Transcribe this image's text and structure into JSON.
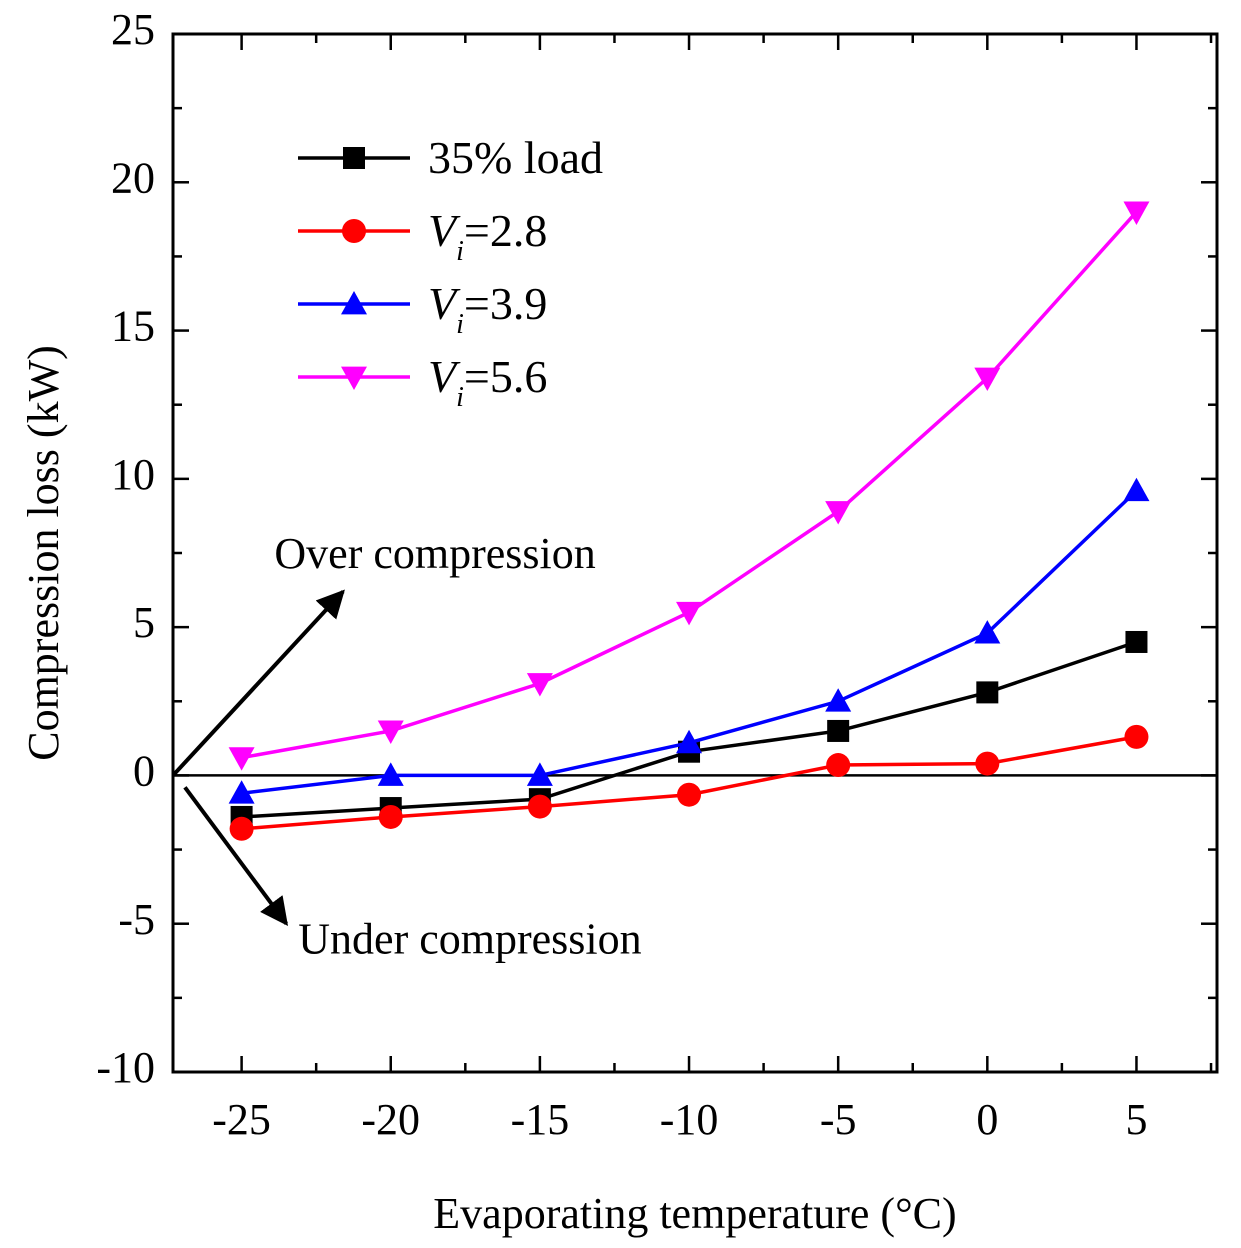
{
  "chart_data": {
    "type": "line",
    "xlabel": "Evaporating temperature (°C)",
    "ylabel": "Compression loss (kW)",
    "xlim": [
      -27.3,
      7.7
    ],
    "ylim": [
      -10,
      25
    ],
    "x_ticks": [
      -25,
      -20,
      -15,
      -10,
      -5,
      0,
      5
    ],
    "y_ticks": [
      -10,
      -5,
      0,
      5,
      10,
      15,
      20,
      25
    ],
    "x_tick_labels": [
      "-25",
      "-20",
      "-15",
      "-10",
      "-5",
      "0",
      "5"
    ],
    "y_tick_labels": [
      "-10",
      "-5",
      "0",
      "5",
      "10",
      "15",
      "20",
      "25"
    ],
    "grid": false,
    "legend_position": "top-left",
    "zero_line": true,
    "x": [
      -25,
      -20,
      -15,
      -10,
      -5,
      0,
      5
    ],
    "series": [
      {
        "name": "35% load",
        "name_main": "35% load",
        "name_sub": "",
        "name_tail": "",
        "color": "#000000",
        "marker": "square",
        "values": [
          -1.4,
          -1.1,
          -0.8,
          0.8,
          1.5,
          2.8,
          4.5
        ]
      },
      {
        "name": "Vi=2.8",
        "name_main": "V",
        "name_sub": "i",
        "name_tail": "=2.8",
        "color": "#ff0000",
        "marker": "circle",
        "values": [
          -1.8,
          -1.4,
          -1.05,
          -0.65,
          0.35,
          0.4,
          1.3
        ]
      },
      {
        "name": "Vi=3.9",
        "name_main": "V",
        "name_sub": "i",
        "name_tail": "=3.9",
        "color": "#0000ff",
        "marker": "triangle-up",
        "values": [
          -0.6,
          0.0,
          0.0,
          1.1,
          2.5,
          4.8,
          9.6
        ]
      },
      {
        "name": "Vi=5.6",
        "name_main": "V",
        "name_sub": "i",
        "name_tail": "=5.6",
        "color": "#ff00ff",
        "marker": "triangle-down",
        "values": [
          0.6,
          1.5,
          3.1,
          5.5,
          8.9,
          13.4,
          19.0
        ]
      }
    ],
    "annotations": [
      {
        "text": "Over compression",
        "arrow_from": [
          -27.3,
          0
        ],
        "arrow_to": [
          -21.6,
          6.2
        ],
        "label_at": [
          -23.9,
          7.0
        ]
      },
      {
        "text": "Under compression",
        "arrow_from": [
          -26.9,
          -0.4
        ],
        "arrow_to": [
          -23.5,
          -5.0
        ],
        "label_at": [
          -23.1,
          -6.0
        ]
      }
    ]
  }
}
